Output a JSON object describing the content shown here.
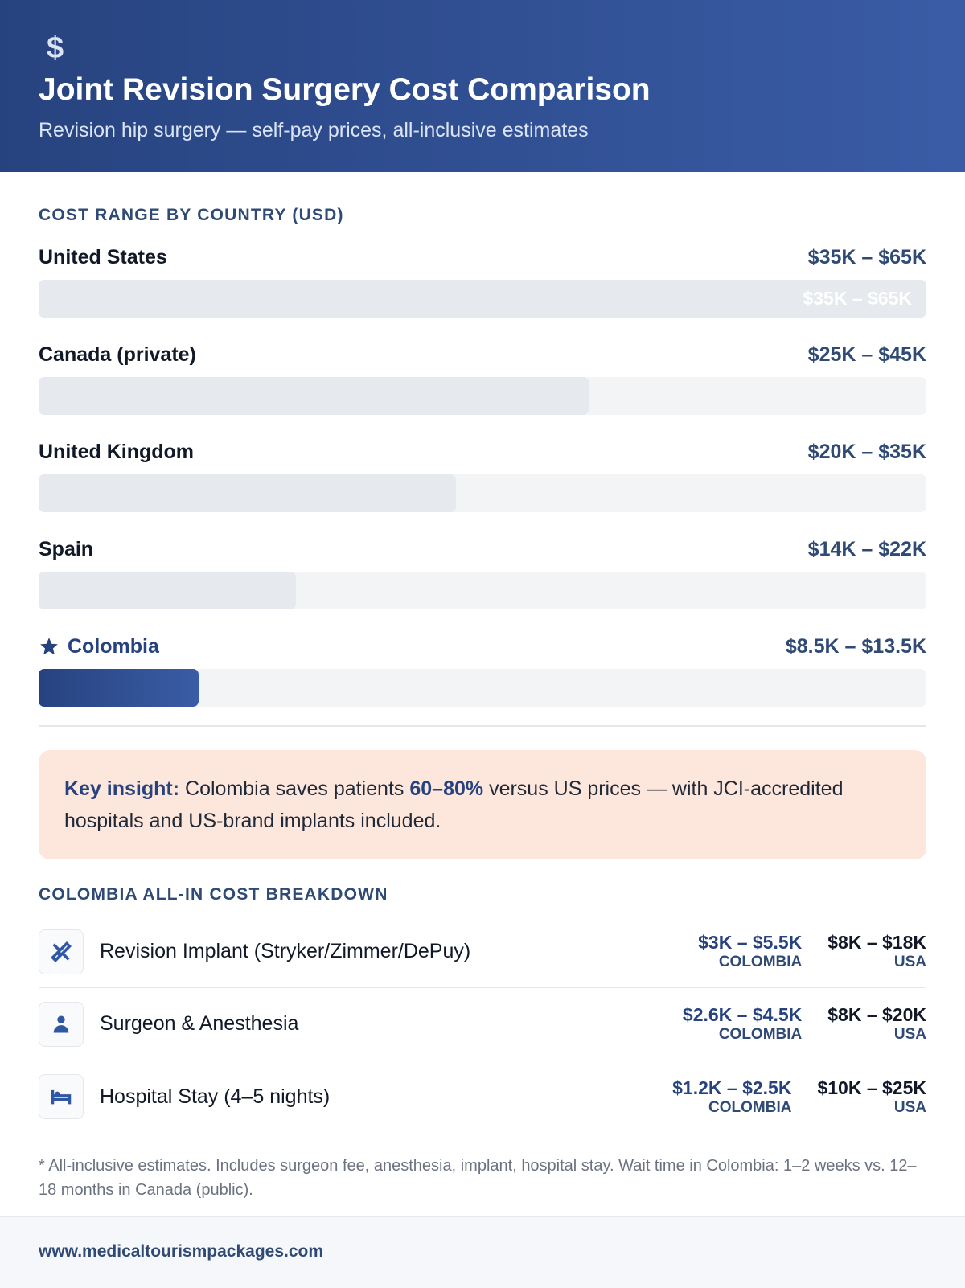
{
  "header": {
    "title": "Joint Revision Surgery Cost Comparison",
    "subtitle": "Revision hip surgery — self-pay prices, all-inclusive estimates"
  },
  "cost_range": {
    "heading": "COST RANGE BY COUNTRY (USD)",
    "rows": [
      {
        "country": "United States",
        "range": "$35K – $65K",
        "bar_percent": 100
      },
      {
        "country": "Canada (private)",
        "range": "$25K – $45K",
        "bar_percent": 62
      },
      {
        "country": "United Kingdom",
        "range": "$20K – $35K",
        "bar_percent": 47
      },
      {
        "country": "Spain",
        "range": "$14K – $22K",
        "bar_percent": 29
      },
      {
        "country": "Colombia",
        "range": "$8.5K – $13.5K",
        "bar_percent": 18,
        "highlight": true
      }
    ]
  },
  "insight": {
    "label": "Key insight:",
    "text_before": "Colombia saves patients",
    "highlight": "60–80%",
    "text_after": "versus US prices — with JCI-accredited hospitals and US-brand implants included."
  },
  "breakdown": {
    "heading": "COLOMBIA ALL-IN COST BREAKDOWN",
    "items": [
      {
        "name": "Revision Implant (Stryker/Zimmer/DePuy)",
        "colombia": "$3K – $5.5K",
        "colombia_label": "COLOMBIA",
        "usa": "$8K – $18K",
        "usa_label": "USA"
      },
      {
        "name": "Surgeon & Anesthesia",
        "colombia": "$2.6K – $4.5K",
        "colombia_label": "COLOMBIA",
        "usa": "$8K – $20K",
        "usa_label": "USA"
      },
      {
        "name": "Hospital Stay (4–5 nights)",
        "colombia": "$1.2K – $2.5K",
        "colombia_label": "COLOMBIA",
        "usa": "$10K – $25K",
        "usa_label": "USA"
      }
    ]
  },
  "footnote": "* All-inclusive estimates. Includes surgeon fee, anesthesia, implant, hospital stay. Wait time in Colombia: 1–2 weeks vs. 12–18 months in Canada (public).",
  "footer": "www.medicaltourismpackages.com"
}
